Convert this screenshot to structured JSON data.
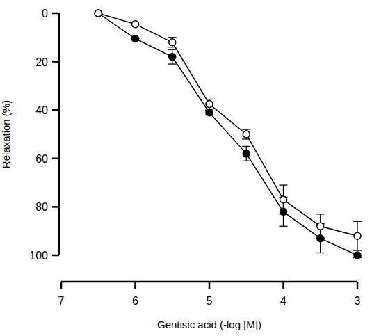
{
  "chart_data": {
    "type": "line",
    "x_label": "Gentisic acid (-log [M])",
    "y_label": "Relaxation (%)",
    "x": [
      6.5,
      6,
      5.5,
      5,
      4.5,
      4,
      3.5,
      3
    ],
    "xlim": [
      7,
      3
    ],
    "xticks": [
      7,
      6,
      5,
      4,
      3
    ],
    "ylim": [
      100,
      0
    ],
    "yticks": [
      0,
      20,
      40,
      60,
      80,
      100
    ],
    "grid": false,
    "series": [
      {
        "color": "#000000",
        "marker": "filled",
        "values": [
          0,
          10.5,
          18,
          41,
          58,
          82,
          93,
          100
        ],
        "errors": [
          0,
          0,
          3,
          1,
          3,
          6,
          6,
          1
        ]
      },
      {
        "color": "#000000",
        "marker": "open",
        "values": [
          0,
          4.5,
          12,
          37.5,
          50,
          77,
          88,
          92
        ],
        "errors": [
          0,
          0,
          2,
          2,
          2,
          6,
          5,
          6
        ]
      }
    ]
  }
}
